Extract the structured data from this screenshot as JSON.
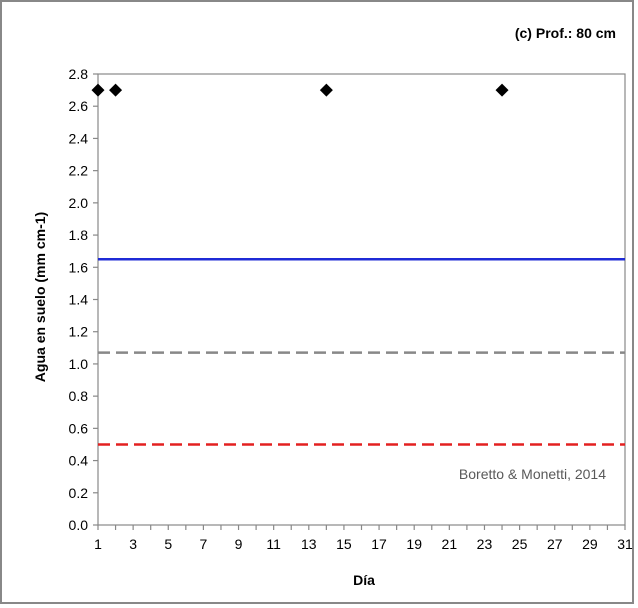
{
  "chart_data": {
    "type": "scatter",
    "title": "(c) Prof.: 80 cm",
    "xlabel": "Día",
    "ylabel": "Agua en suelo (mm cm-1)",
    "xlim": [
      1,
      31
    ],
    "ylim": [
      0.0,
      2.8
    ],
    "xticks": [
      1,
      3,
      5,
      7,
      9,
      11,
      13,
      15,
      17,
      19,
      21,
      23,
      25,
      27,
      29,
      31
    ],
    "yticks": [
      "0.0",
      "0.2",
      "0.4",
      "0.6",
      "0.8",
      "1.0",
      "1.2",
      "1.4",
      "1.6",
      "1.8",
      "2.0",
      "2.2",
      "2.4",
      "2.6",
      "2.8"
    ],
    "points": {
      "color": "#000000",
      "marker": "diamond",
      "x": [
        1,
        2,
        14,
        24
      ],
      "y": [
        2.7,
        2.7,
        2.7,
        2.7
      ]
    },
    "reference_lines": [
      {
        "y": 1.65,
        "color": "#1f2bd6",
        "style": "solid"
      },
      {
        "y": 1.07,
        "color": "#888888",
        "style": "dashed"
      },
      {
        "y": 0.5,
        "color": "#e32020",
        "style": "dashed"
      }
    ],
    "annotation": "Boretto & Monetti, 2014",
    "grid": false
  }
}
